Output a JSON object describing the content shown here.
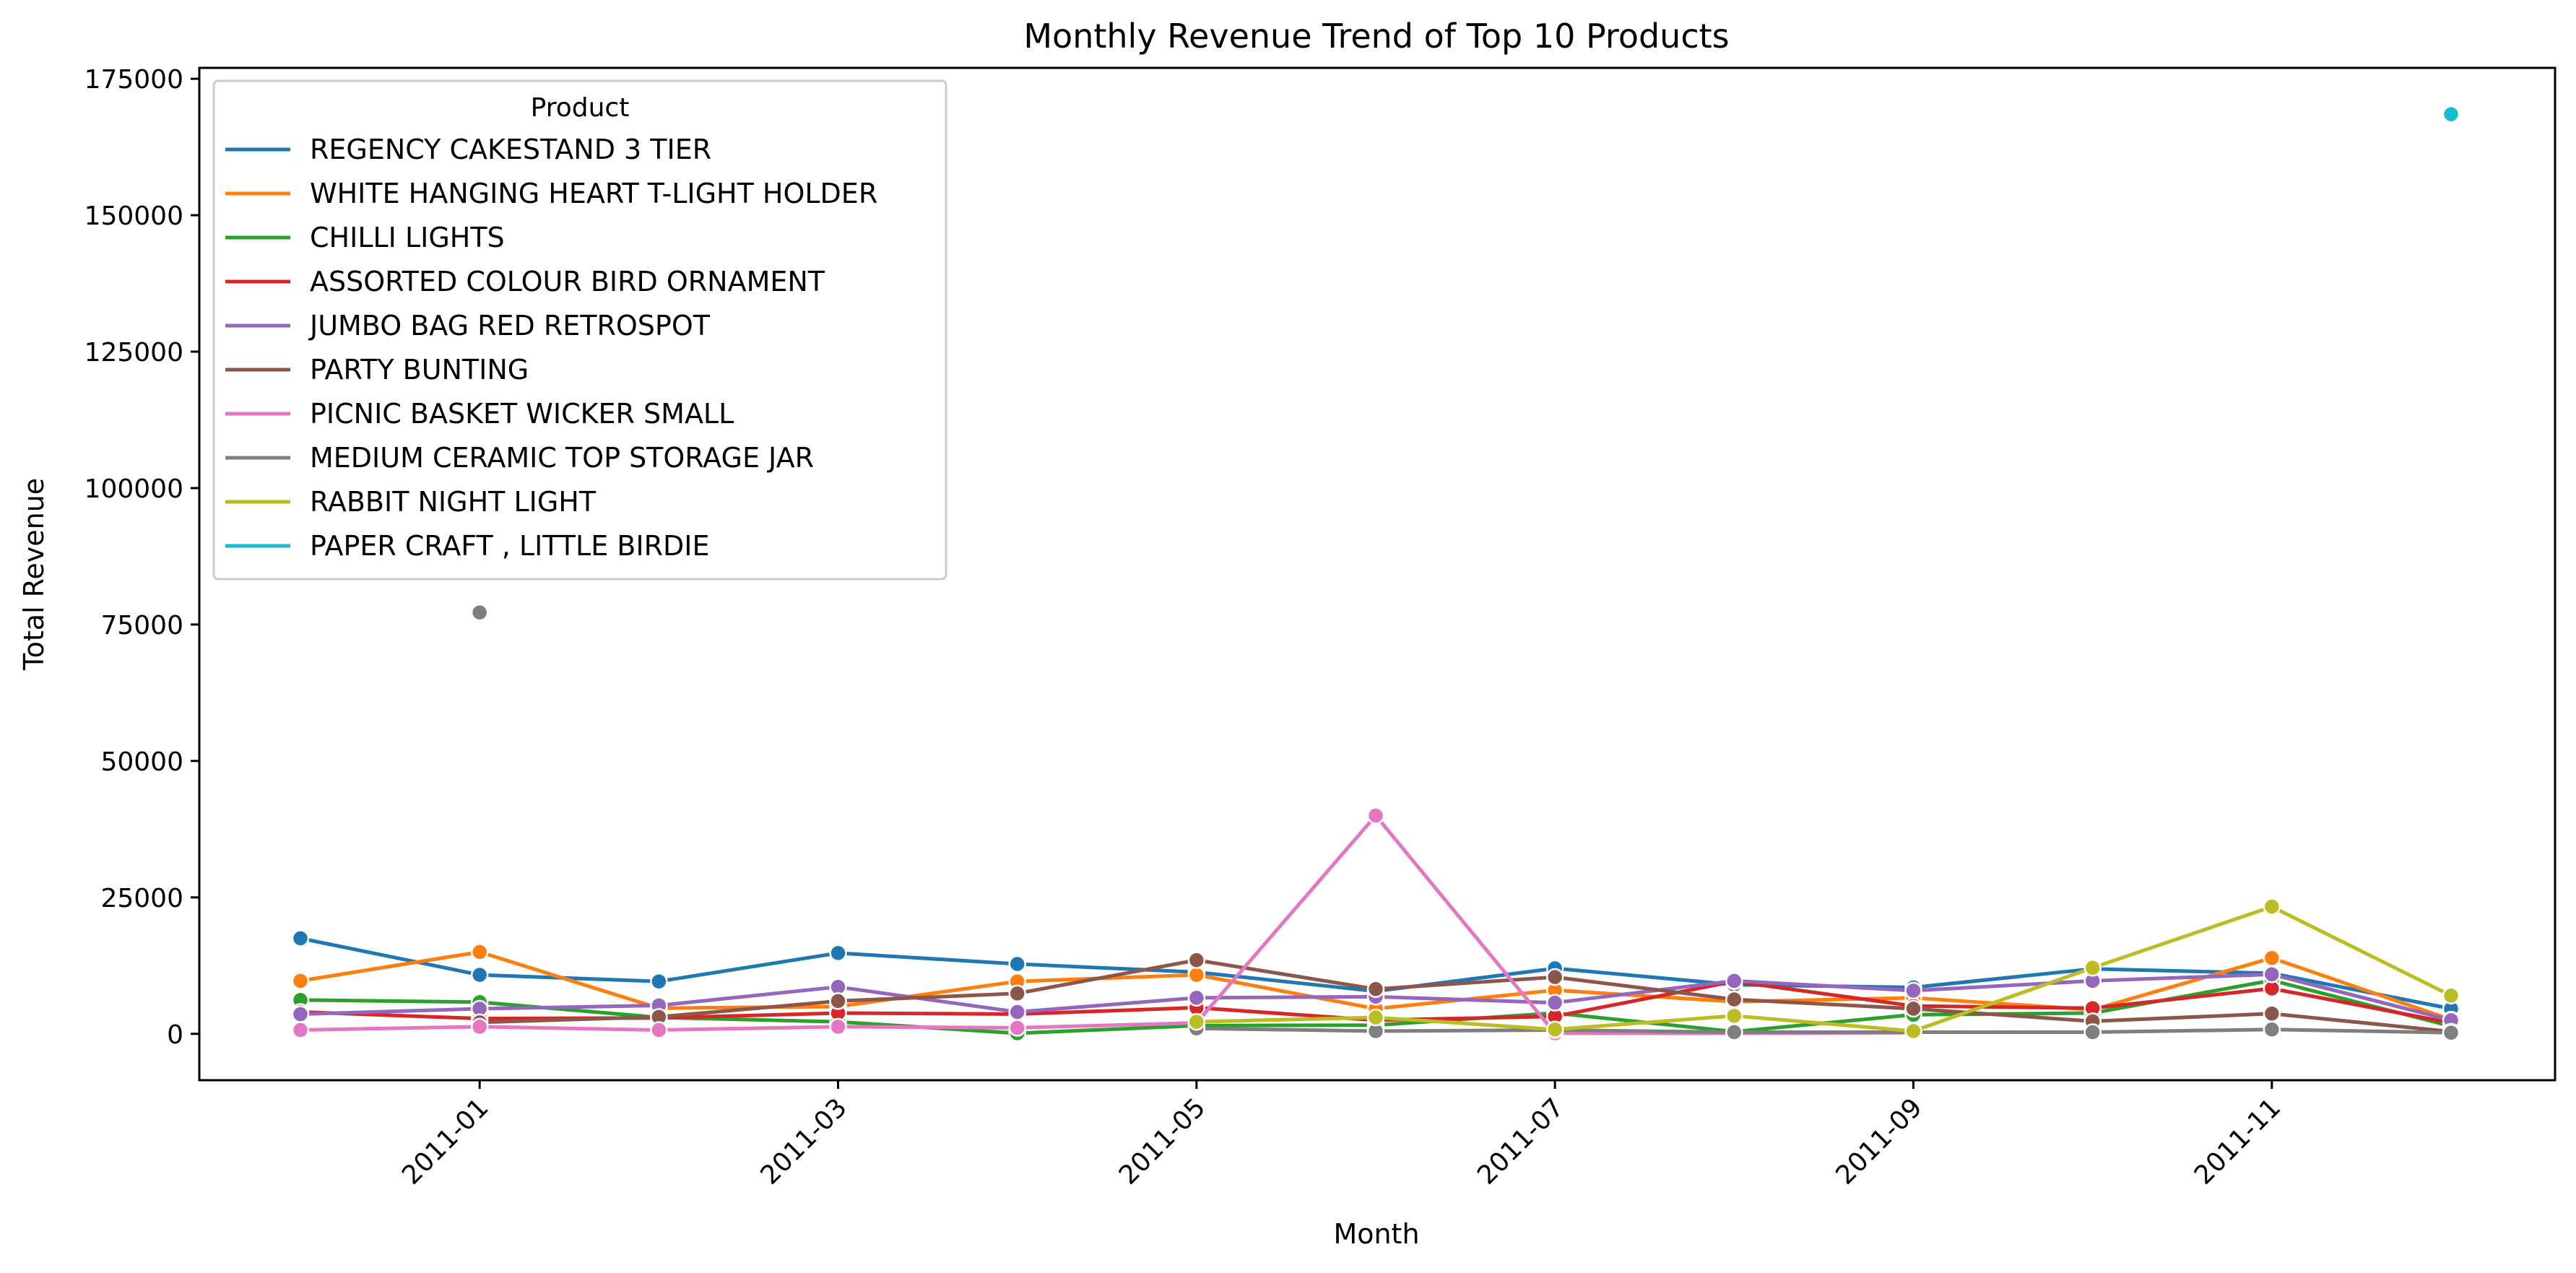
{
  "chart_data": {
    "type": "line",
    "title": "Monthly Revenue Trend of Top 10 Products",
    "xlabel": "Month",
    "ylabel": "Total Revenue",
    "legend_title": "Product",
    "legend_position": "top-left",
    "grid": false,
    "x": [
      "2010-12",
      "2011-01",
      "2011-02",
      "2011-03",
      "2011-04",
      "2011-05",
      "2011-06",
      "2011-07",
      "2011-08",
      "2011-09",
      "2011-10",
      "2011-11",
      "2011-12"
    ],
    "x_ticks": [
      "2011-01",
      "2011-03",
      "2011-05",
      "2011-07",
      "2011-09",
      "2011-11"
    ],
    "ylim": [
      -8500,
      177000
    ],
    "y_ticks": [
      0,
      25000,
      50000,
      75000,
      100000,
      125000,
      150000,
      175000
    ],
    "series": [
      {
        "name": "REGENCY CAKESTAND 3 TIER",
        "color": "#1f77b4",
        "values": [
          17500,
          10800,
          9600,
          14800,
          12800,
          11300,
          7800,
          12000,
          9000,
          8500,
          11900,
          11100,
          4600
        ]
      },
      {
        "name": "WHITE HANGING HEART T-LIGHT HOLDER",
        "color": "#ff7f0e",
        "values": [
          9700,
          15000,
          4700,
          5000,
          9600,
          10800,
          4600,
          8000,
          5900,
          6600,
          4400,
          13900,
          2600
        ]
      },
      {
        "name": "CHILLI LIGHTS",
        "color": "#2ca02c",
        "values": [
          6200,
          5800,
          3000,
          2200,
          100,
          1500,
          1600,
          3800,
          400,
          3500,
          3800,
          9800,
          1400
        ]
      },
      {
        "name": "ASSORTED COLOUR BIRD ORNAMENT",
        "color": "#d62728",
        "values": [
          4000,
          2800,
          2900,
          3800,
          3600,
          4800,
          2500,
          3200,
          9600,
          5100,
          4700,
          8300,
          2000
        ]
      },
      {
        "name": "JUMBO BAG RED RETROSPOT",
        "color": "#9467bd",
        "values": [
          3600,
          4600,
          5200,
          8600,
          4000,
          6600,
          6800,
          5700,
          9700,
          7900,
          9700,
          10900,
          2500
        ]
      },
      {
        "name": "PARTY BUNTING",
        "color": "#8c564b",
        "values": [
          null,
          2100,
          3100,
          6000,
          7400,
          13500,
          8200,
          10400,
          6300,
          4600,
          2300,
          3700,
          400
        ]
      },
      {
        "name": "PICNIC BASKET WICKER SMALL",
        "color": "#e377c2",
        "values": [
          700,
          1300,
          700,
          1300,
          1100,
          2000,
          40000,
          100,
          100,
          200,
          null,
          null,
          null
        ]
      },
      {
        "name": "MEDIUM CERAMIC TOP STORAGE JAR",
        "color": "#7f7f7f",
        "values": [
          null,
          77200,
          null,
          null,
          null,
          1000,
          500,
          700,
          300,
          300,
          300,
          800,
          200
        ]
      },
      {
        "name": "RABBIT NIGHT LIGHT",
        "color": "#bcbd22",
        "values": [
          null,
          null,
          null,
          null,
          null,
          2200,
          3000,
          800,
          3300,
          500,
          12100,
          23300,
          7000
        ]
      },
      {
        "name": "PAPER CRAFT , LITTLE BIRDIE",
        "color": "#17becf",
        "values": [
          null,
          null,
          null,
          null,
          null,
          null,
          null,
          null,
          null,
          null,
          null,
          null,
          168500
        ]
      }
    ]
  }
}
